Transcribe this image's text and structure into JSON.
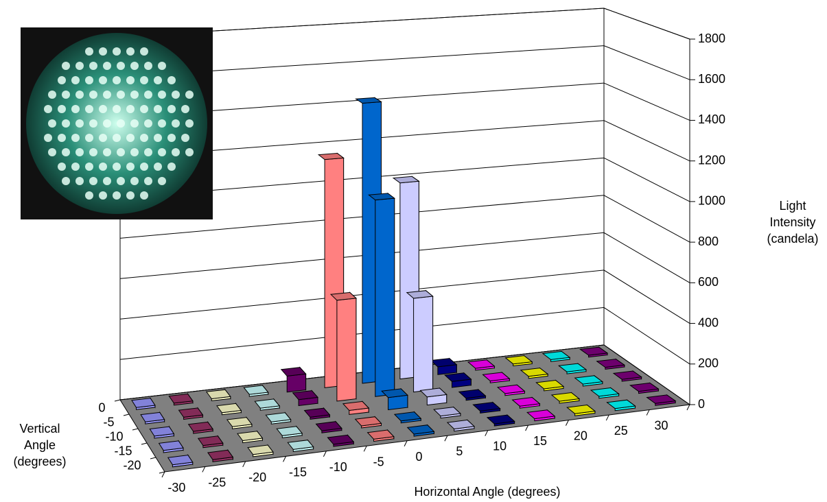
{
  "chart_data": {
    "type": "bar3d",
    "x_label": "Horizontal Angle (degrees)",
    "y_label": "Vertical Angle (degrees)",
    "z_label": "Light Intensity (candela)",
    "categories": [
      "-30",
      "-25",
      "-20",
      "-15",
      "-10",
      "-5",
      "0",
      "5",
      "10",
      "15",
      "20",
      "25",
      "30"
    ],
    "colors": [
      "#9999ff",
      "#993366",
      "#ffffcc",
      "#ccffff",
      "#660066",
      "#ff8080",
      "#0066cc",
      "#ccccff",
      "#000080",
      "#ff00ff",
      "#ffff00",
      "#00ffff",
      "#800080"
    ],
    "series": [
      {
        "name": "0",
        "values": [
          10,
          10,
          10,
          10,
          80,
          1150,
          1420,
          1000,
          40,
          10,
          10,
          10,
          10
        ]
      },
      {
        "name": "-5",
        "values": [
          10,
          10,
          10,
          10,
          30,
          500,
          980,
          470,
          30,
          10,
          10,
          10,
          10
        ]
      },
      {
        "name": "-10",
        "values": [
          10,
          10,
          10,
          10,
          10,
          20,
          60,
          40,
          10,
          10,
          10,
          10,
          10
        ]
      },
      {
        "name": "-15",
        "values": [
          10,
          10,
          10,
          10,
          10,
          10,
          10,
          10,
          10,
          10,
          10,
          10,
          10
        ]
      },
      {
        "name": "-20",
        "values": [
          10,
          10,
          10,
          10,
          10,
          10,
          10,
          10,
          10,
          10,
          10,
          10,
          10
        ]
      }
    ],
    "zlim": [
      0,
      1800
    ],
    "zticks": [
      0,
      200,
      400,
      600,
      800,
      1000,
      1200,
      1400,
      1600,
      1800
    ],
    "grid": true
  }
}
